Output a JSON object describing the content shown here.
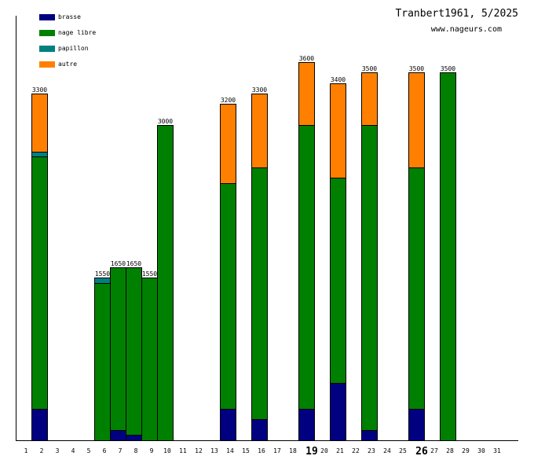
{
  "chart_data": {
    "type": "bar",
    "stacked": true,
    "title": "Tranbert1961, 5/2025",
    "subtitle": "www.nageurs.com",
    "xlabel": "",
    "ylabel": "",
    "ylim": [
      0,
      4000
    ],
    "grid": false,
    "legend_position": "top-left",
    "categories": [
      "1",
      "2",
      "3",
      "4",
      "5",
      "6",
      "7",
      "8",
      "9",
      "10",
      "11",
      "12",
      "13",
      "14",
      "15",
      "16",
      "17",
      "18",
      "19",
      "20",
      "21",
      "22",
      "23",
      "24",
      "25",
      "26",
      "27",
      "28",
      "29",
      "30",
      "31"
    ],
    "highlighted_ticks": [
      "19",
      "26"
    ],
    "series": [
      {
        "name": "brasse",
        "color": "#000080",
        "values": [
          0,
          300,
          0,
          0,
          0,
          0,
          100,
          50,
          0,
          0,
          0,
          0,
          0,
          300,
          0,
          200,
          0,
          0,
          300,
          0,
          550,
          0,
          100,
          0,
          0,
          300,
          0,
          0,
          0,
          0,
          0
        ]
      },
      {
        "name": "nage libre",
        "color": "#008000",
        "values": [
          0,
          2400,
          0,
          0,
          0,
          1500,
          1550,
          1600,
          1550,
          3000,
          0,
          0,
          0,
          2150,
          0,
          2400,
          0,
          0,
          2700,
          0,
          1950,
          0,
          2900,
          0,
          0,
          2300,
          0,
          3500,
          0,
          0,
          0
        ]
      },
      {
        "name": "papillon",
        "color": "#008080",
        "values": [
          0,
          50,
          0,
          0,
          0,
          50,
          0,
          0,
          0,
          0,
          0,
          0,
          0,
          0,
          0,
          0,
          0,
          0,
          0,
          0,
          0,
          0,
          0,
          0,
          0,
          0,
          0,
          0,
          0,
          0,
          0
        ]
      },
      {
        "name": "autre",
        "color": "#ff8000",
        "values": [
          0,
          550,
          0,
          0,
          0,
          0,
          0,
          0,
          0,
          0,
          0,
          0,
          0,
          750,
          0,
          700,
          0,
          0,
          600,
          0,
          900,
          0,
          500,
          0,
          0,
          900,
          0,
          0,
          0,
          0,
          0
        ]
      }
    ],
    "totals": [
      0,
      3300,
      0,
      0,
      0,
      1550,
      1650,
      1650,
      1550,
      3000,
      0,
      0,
      0,
      3200,
      0,
      3300,
      0,
      0,
      3600,
      0,
      3400,
      0,
      3500,
      0,
      0,
      3500,
      0,
      3500,
      0,
      0,
      0
    ]
  }
}
